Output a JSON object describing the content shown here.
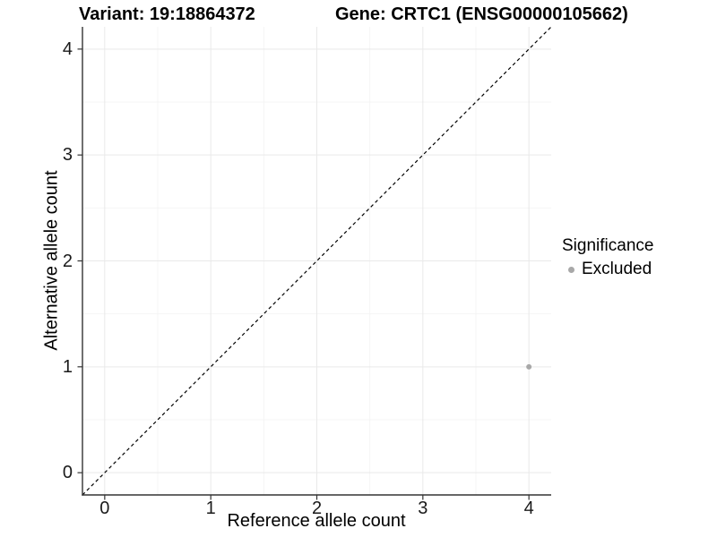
{
  "chart_data": {
    "type": "scatter",
    "titles": {
      "variant": "Variant: 19:18864372",
      "gene": "Gene: CRTC1 (ENSG00000105662)"
    },
    "xlabel": "Reference allele count",
    "ylabel": "Alternative allele count",
    "xlim": [
      -0.21,
      4.21
    ],
    "ylim": [
      -0.21,
      4.21
    ],
    "xticks": [
      0,
      1,
      2,
      3,
      4
    ],
    "yticks": [
      0,
      1,
      2,
      3,
      4
    ],
    "minor_xticks": [
      0.5,
      1.5,
      2.5,
      3.5
    ],
    "minor_yticks": [
      0.5,
      1.5,
      2.5,
      3.5
    ],
    "grid": {
      "major_color": "#e9e9e9",
      "minor_color": "#f4f4f4",
      "background": "#ffffff"
    },
    "axis_color": "#333333",
    "identity_line": {
      "slope": 1,
      "intercept": 0,
      "style": "dashed",
      "color": "#000000"
    },
    "points": [
      {
        "x": 4,
        "y": 1,
        "significance": "Excluded",
        "color": "#a8a8a8"
      }
    ],
    "legend": {
      "title": "Significance",
      "position": "right",
      "entries": [
        {
          "label": "Excluded",
          "color": "#a8a8a8"
        }
      ]
    }
  }
}
